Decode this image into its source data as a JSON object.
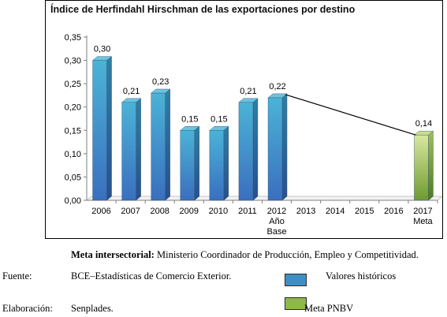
{
  "chart_data": {
    "type": "bar",
    "title": "Índice de Herfindahl Hirschman de las exportaciones por destino",
    "categories": [
      "2006",
      "2007",
      "2008",
      "2009",
      "2010",
      "2011",
      "2012",
      "2013",
      "2014",
      "2015",
      "2016",
      "2017"
    ],
    "category_sublabels": {
      "2012": [
        "Año",
        "Base"
      ],
      "2017": [
        "Meta"
      ]
    },
    "series": [
      {
        "name": "Valores históricos",
        "values": [
          0.3,
          0.21,
          0.23,
          0.15,
          0.15,
          0.21,
          0.22,
          null,
          null,
          null,
          null,
          null
        ],
        "color": "#3f8fc4"
      },
      {
        "name": "Meta PNBV",
        "values": [
          null,
          null,
          null,
          null,
          null,
          null,
          null,
          null,
          null,
          null,
          null,
          0.14
        ],
        "color": "#8fb84a"
      }
    ],
    "data_labels": [
      "0,30",
      "0,21",
      "0,23",
      "0,15",
      "0,15",
      "0,21",
      "0,22",
      "",
      "",
      "",
      "",
      "0,14"
    ],
    "trend_line": {
      "from": "2012",
      "to": "2017"
    },
    "ylim": [
      0,
      0.35
    ],
    "yticks": [
      "0,00",
      "0,05",
      "0,10",
      "0,15",
      "0,20",
      "0,25",
      "0,30",
      "0,35"
    ],
    "xlabel": "",
    "ylabel": "",
    "grid": false,
    "legend": "below"
  },
  "footer": {
    "meta_label": "Meta intersectorial:",
    "meta_text": " Ministerio Coordinador de Producción, Empleo y Competitividad.",
    "fuente_label": "Fuente:",
    "fuente_text": "BCE–Estadísticas de Comercio Exterior.",
    "elaboracion_label": "Elaboración:",
    "elaboracion_text": "Senplades.",
    "legend_hist": "Valores históricos",
    "legend_meta": "Meta PNBV"
  },
  "colors": {
    "historic": "#3f8fc4",
    "target": "#8fb84a"
  }
}
